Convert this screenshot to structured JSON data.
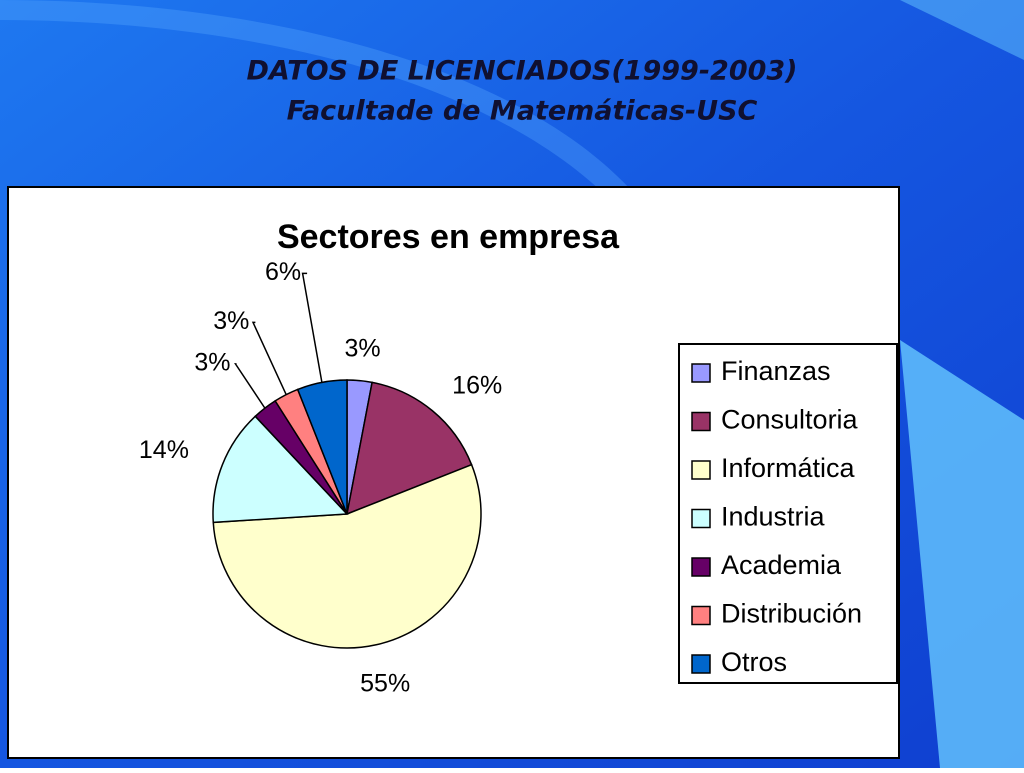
{
  "slide_title": [
    "DATOS DE LICENCIADOS(1999-2003)",
    "Facultade de Matemáticas-USC"
  ],
  "chart_data": {
    "type": "pie",
    "title": "Sectores en empresa",
    "categories": [
      "Finanzas",
      "Consultoria",
      "Informática",
      "Industria",
      "Academia",
      "Distribución",
      "Otros"
    ],
    "values": [
      3,
      16,
      55,
      14,
      3,
      3,
      6
    ],
    "value_labels": [
      "3%",
      "16%",
      "55%",
      "14%",
      "3%",
      "3%",
      "6%"
    ],
    "colors": [
      "#9999ff",
      "#993366",
      "#ffffcc",
      "#ccffff",
      "#660066",
      "#ff8080",
      "#0066cc"
    ],
    "legend": "right"
  }
}
